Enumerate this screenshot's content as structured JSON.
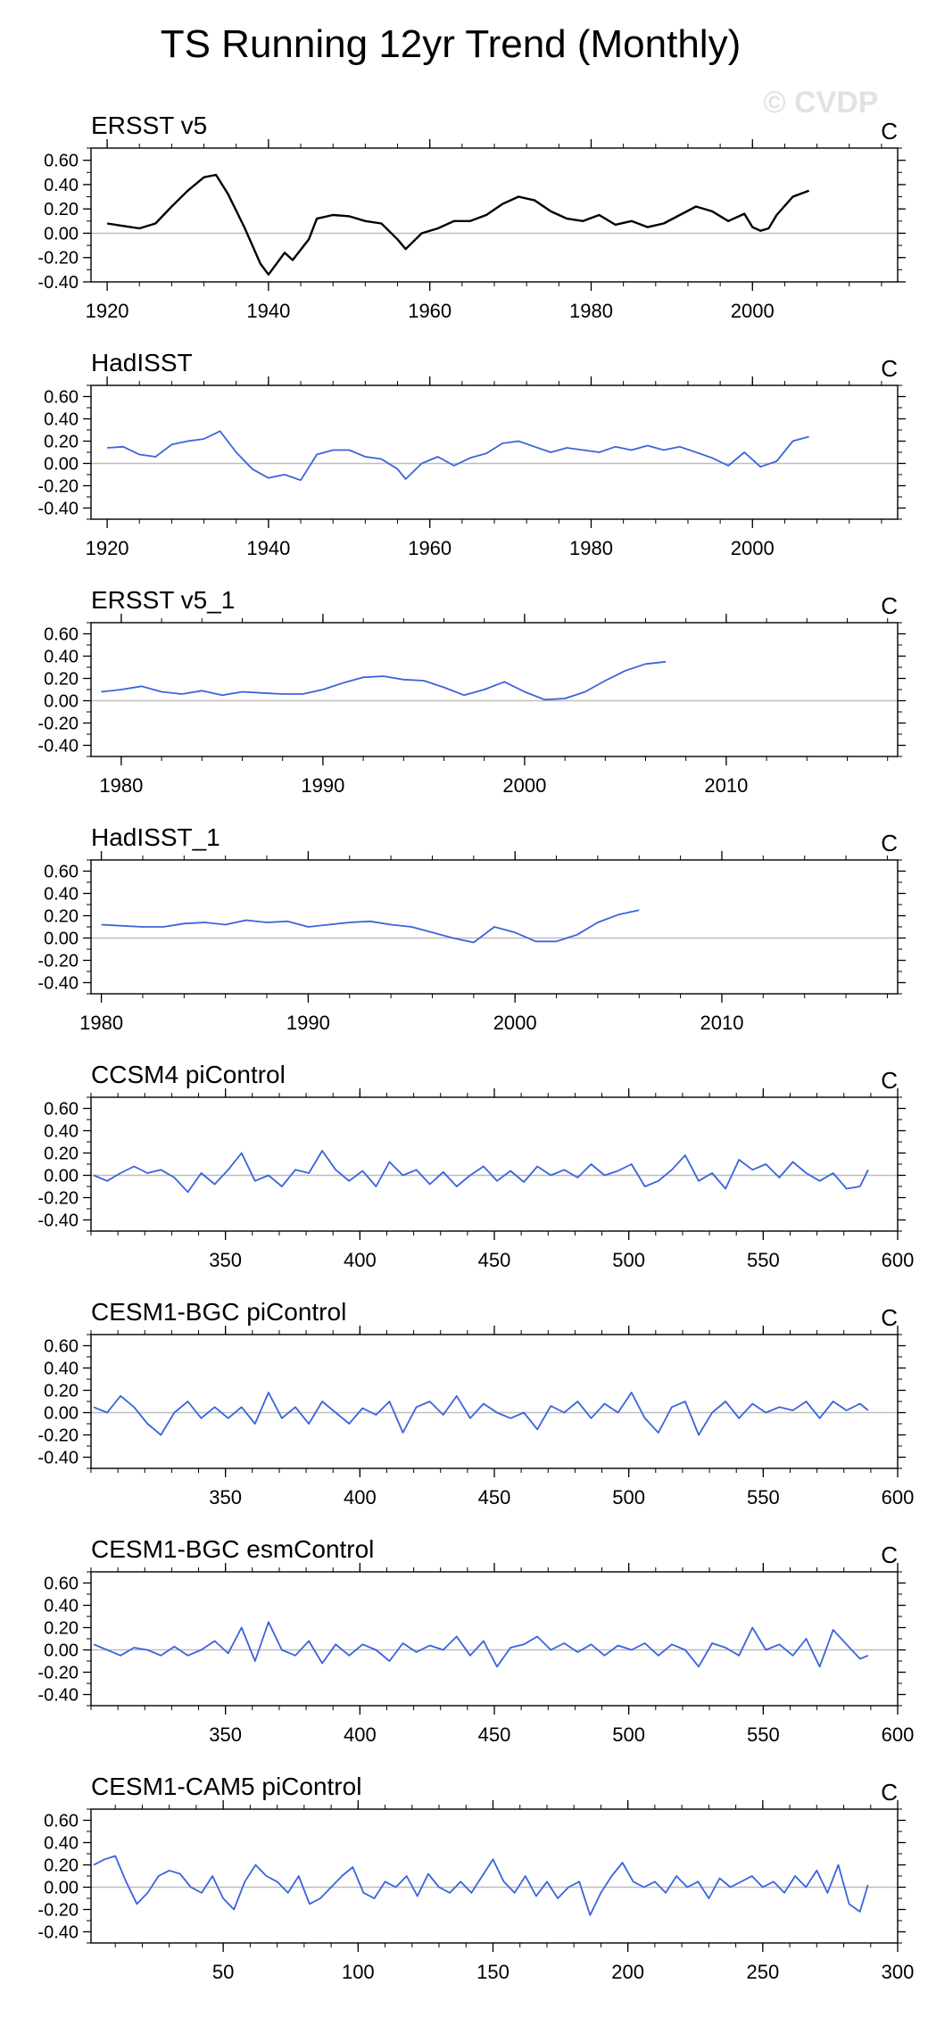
{
  "figure": {
    "title": "TS Running 12yr Trend (Monthly)",
    "watermark": "© CVDP"
  },
  "colors": {
    "observed_line": "#000000",
    "model_line": "#3b63dd",
    "zero_line": "#bdbdbd",
    "frame": "#000000",
    "watermark": "#e2e2e2"
  },
  "chart_data": [
    {
      "type": "line",
      "title": "ERSST v5",
      "units": "C",
      "color_key": "observed_line",
      "xlim": [
        1918,
        2018
      ],
      "ylim": [
        -0.4,
        0.7
      ],
      "yticks": [
        -0.4,
        -0.2,
        0.0,
        0.2,
        0.4,
        0.6
      ],
      "ytick_labels": [
        "-0.40",
        "-0.20",
        "0.00",
        "0.20",
        "0.40",
        "0.60"
      ],
      "xticks": [
        1920,
        1940,
        1960,
        1980,
        2000
      ],
      "xtick_labels": [
        "1920",
        "1940",
        "1960",
        "1980",
        "2000"
      ],
      "x": [
        1920,
        1922,
        1924,
        1926,
        1928,
        1930,
        1932,
        1933.5,
        1935,
        1937,
        1939,
        1940,
        1942,
        1943,
        1945,
        1946,
        1948,
        1950,
        1952,
        1954,
        1956,
        1957,
        1959,
        1961,
        1963,
        1965,
        1967,
        1969,
        1971,
        1973,
        1975,
        1977,
        1979,
        1981,
        1983,
        1985,
        1987,
        1989,
        1991,
        1993,
        1995,
        1997,
        1999,
        2000,
        2001,
        2002,
        2003,
        2005,
        2007
      ],
      "y": [
        0.08,
        0.06,
        0.04,
        0.08,
        0.22,
        0.35,
        0.46,
        0.48,
        0.32,
        0.05,
        -0.25,
        -0.34,
        -0.16,
        -0.22,
        -0.05,
        0.12,
        0.15,
        0.14,
        0.1,
        0.08,
        -0.05,
        -0.13,
        0.0,
        0.04,
        0.1,
        0.1,
        0.15,
        0.24,
        0.3,
        0.27,
        0.18,
        0.12,
        0.1,
        0.15,
        0.07,
        0.1,
        0.05,
        0.08,
        0.15,
        0.22,
        0.18,
        0.1,
        0.16,
        0.05,
        0.02,
        0.04,
        0.15,
        0.3,
        0.35
      ]
    },
    {
      "type": "line",
      "title": "HadISST",
      "units": "C",
      "color_key": "model_line",
      "xlim": [
        1918,
        2018
      ],
      "ylim": [
        -0.5,
        0.7
      ],
      "yticks": [
        -0.4,
        -0.2,
        0.0,
        0.2,
        0.4,
        0.6
      ],
      "ytick_labels": [
        "-0.40",
        "-0.20",
        "0.00",
        "0.20",
        "0.40",
        "0.60"
      ],
      "xticks": [
        1920,
        1940,
        1960,
        1980,
        2000
      ],
      "xtick_labels": [
        "1920",
        "1940",
        "1960",
        "1980",
        "2000"
      ],
      "x": [
        1920,
        1922,
        1924,
        1926,
        1928,
        1930,
        1932,
        1934,
        1936,
        1938,
        1940,
        1942,
        1944,
        1946,
        1948,
        1950,
        1952,
        1954,
        1956,
        1957,
        1959,
        1961,
        1963,
        1965,
        1967,
        1969,
        1971,
        1973,
        1975,
        1977,
        1979,
        1981,
        1983,
        1985,
        1987,
        1989,
        1991,
        1993,
        1995,
        1997,
        1999,
        2001,
        2003,
        2005,
        2007
      ],
      "y": [
        0.14,
        0.15,
        0.08,
        0.06,
        0.17,
        0.2,
        0.22,
        0.29,
        0.1,
        -0.05,
        -0.13,
        -0.1,
        -0.15,
        0.08,
        0.12,
        0.12,
        0.06,
        0.04,
        -0.05,
        -0.14,
        0.0,
        0.06,
        -0.02,
        0.05,
        0.09,
        0.18,
        0.2,
        0.15,
        0.1,
        0.14,
        0.12,
        0.1,
        0.15,
        0.12,
        0.16,
        0.12,
        0.15,
        0.1,
        0.05,
        -0.02,
        0.1,
        -0.03,
        0.02,
        0.2,
        0.24
      ]
    },
    {
      "type": "line",
      "title": "ERSST v5_1",
      "units": "C",
      "color_key": "model_line",
      "xlim": [
        1978.5,
        2018.5
      ],
      "ylim": [
        -0.5,
        0.7
      ],
      "yticks": [
        -0.4,
        -0.2,
        0.0,
        0.2,
        0.4,
        0.6
      ],
      "ytick_labels": [
        "-0.40",
        "-0.20",
        "0.00",
        "0.20",
        "0.40",
        "0.60"
      ],
      "xticks": [
        1980,
        1990,
        2000,
        2010
      ],
      "xtick_labels": [
        "1980",
        "1990",
        "2000",
        "2010"
      ],
      "x": [
        1979,
        1980,
        1981,
        1982,
        1983,
        1984,
        1985,
        1986,
        1987,
        1988,
        1989,
        1990,
        1991,
        1992,
        1993,
        1994,
        1995,
        1996,
        1997,
        1998,
        1999,
        2000,
        2001,
        2002,
        2003,
        2004,
        2005,
        2006,
        2007
      ],
      "y": [
        0.08,
        0.1,
        0.13,
        0.08,
        0.06,
        0.09,
        0.05,
        0.08,
        0.07,
        0.06,
        0.06,
        0.1,
        0.16,
        0.21,
        0.22,
        0.19,
        0.18,
        0.12,
        0.05,
        0.1,
        0.17,
        0.08,
        0.01,
        0.02,
        0.08,
        0.18,
        0.27,
        0.33,
        0.35
      ]
    },
    {
      "type": "line",
      "title": "HadISST_1",
      "units": "C",
      "color_key": "model_line",
      "xlim": [
        1979.5,
        2018.5
      ],
      "ylim": [
        -0.5,
        0.7
      ],
      "yticks": [
        -0.4,
        -0.2,
        0.0,
        0.2,
        0.4,
        0.6
      ],
      "ytick_labels": [
        "-0.40",
        "-0.20",
        "0.00",
        "0.20",
        "0.40",
        "0.60"
      ],
      "xticks": [
        1980,
        1990,
        2000,
        2010
      ],
      "xtick_labels": [
        "1980",
        "1990",
        "2000",
        "2010"
      ],
      "x": [
        1980,
        1981,
        1982,
        1983,
        1984,
        1985,
        1986,
        1987,
        1988,
        1989,
        1990,
        1991,
        1992,
        1993,
        1994,
        1995,
        1996,
        1997,
        1998,
        1999,
        2000,
        2001,
        2002,
        2003,
        2004,
        2005,
        2006
      ],
      "y": [
        0.12,
        0.11,
        0.1,
        0.1,
        0.13,
        0.14,
        0.12,
        0.16,
        0.14,
        0.15,
        0.1,
        0.12,
        0.14,
        0.15,
        0.12,
        0.1,
        0.05,
        0.0,
        -0.04,
        0.1,
        0.05,
        -0.03,
        -0.03,
        0.03,
        0.14,
        0.21,
        0.25
      ]
    },
    {
      "type": "line",
      "title": "CCSM4 piControl",
      "units": "C",
      "color_key": "model_line",
      "xlim": [
        300,
        600
      ],
      "ylim": [
        -0.5,
        0.7
      ],
      "yticks": [
        -0.4,
        -0.2,
        0.0,
        0.2,
        0.4,
        0.6
      ],
      "ytick_labels": [
        "-0.40",
        "-0.20",
        "0.00",
        "0.20",
        "0.40",
        "0.60"
      ],
      "xticks": [
        350,
        400,
        450,
        500,
        550,
        600
      ],
      "xtick_labels": [
        "350",
        "400",
        "450",
        "500",
        "550",
        "600"
      ],
      "x": [
        301,
        306,
        311,
        316,
        321,
        326,
        331,
        336,
        341,
        346,
        351,
        356,
        361,
        366,
        371,
        376,
        381,
        386,
        391,
        396,
        401,
        406,
        411,
        416,
        421,
        426,
        431,
        436,
        441,
        446,
        451,
        456,
        461,
        466,
        471,
        476,
        481,
        486,
        491,
        496,
        501,
        506,
        511,
        516,
        521,
        526,
        531,
        536,
        541,
        546,
        551,
        556,
        561,
        566,
        571,
        576,
        581,
        586,
        589
      ],
      "y": [
        0.0,
        -0.05,
        0.02,
        0.08,
        0.02,
        0.05,
        -0.02,
        -0.15,
        0.02,
        -0.08,
        0.05,
        0.2,
        -0.05,
        0.0,
        -0.1,
        0.05,
        0.02,
        0.22,
        0.05,
        -0.05,
        0.04,
        -0.1,
        0.12,
        0.0,
        0.05,
        -0.08,
        0.03,
        -0.1,
        0.0,
        0.08,
        -0.05,
        0.04,
        -0.06,
        0.08,
        0.0,
        0.05,
        -0.02,
        0.1,
        0.0,
        0.04,
        0.1,
        -0.1,
        -0.05,
        0.05,
        0.18,
        -0.05,
        0.02,
        -0.12,
        0.14,
        0.05,
        0.1,
        -0.02,
        0.12,
        0.02,
        -0.05,
        0.02,
        -0.12,
        -0.1,
        0.05
      ]
    },
    {
      "type": "line",
      "title": "CESM1-BGC piControl",
      "units": "C",
      "color_key": "model_line",
      "xlim": [
        300,
        600
      ],
      "ylim": [
        -0.5,
        0.7
      ],
      "yticks": [
        -0.4,
        -0.2,
        0.0,
        0.2,
        0.4,
        0.6
      ],
      "ytick_labels": [
        "-0.40",
        "-0.20",
        "0.00",
        "0.20",
        "0.40",
        "0.60"
      ],
      "xticks": [
        350,
        400,
        450,
        500,
        550,
        600
      ],
      "xtick_labels": [
        "350",
        "400",
        "450",
        "500",
        "550",
        "600"
      ],
      "x": [
        301,
        306,
        311,
        316,
        321,
        326,
        331,
        336,
        341,
        346,
        351,
        356,
        361,
        366,
        371,
        376,
        381,
        386,
        391,
        396,
        401,
        406,
        411,
        416,
        421,
        426,
        431,
        436,
        441,
        446,
        451,
        456,
        461,
        466,
        471,
        476,
        481,
        486,
        491,
        496,
        501,
        506,
        511,
        516,
        521,
        526,
        531,
        536,
        541,
        546,
        551,
        556,
        561,
        566,
        571,
        576,
        581,
        586,
        589
      ],
      "y": [
        0.05,
        0.0,
        0.15,
        0.05,
        -0.1,
        -0.2,
        0.0,
        0.1,
        -0.05,
        0.05,
        -0.05,
        0.05,
        -0.1,
        0.18,
        -0.05,
        0.05,
        -0.1,
        0.1,
        0.0,
        -0.1,
        0.04,
        -0.02,
        0.1,
        -0.18,
        0.05,
        0.1,
        -0.02,
        0.15,
        -0.05,
        0.08,
        0.0,
        -0.05,
        0.0,
        -0.15,
        0.06,
        0.0,
        0.1,
        -0.05,
        0.08,
        0.0,
        0.18,
        -0.05,
        -0.18,
        0.05,
        0.1,
        -0.2,
        0.0,
        0.1,
        -0.05,
        0.08,
        0.0,
        0.05,
        0.02,
        0.1,
        -0.05,
        0.1,
        0.02,
        0.08,
        0.02
      ]
    },
    {
      "type": "line",
      "title": "CESM1-BGC esmControl",
      "units": "C",
      "color_key": "model_line",
      "xlim": [
        300,
        600
      ],
      "ylim": [
        -0.5,
        0.7
      ],
      "yticks": [
        -0.4,
        -0.2,
        0.0,
        0.2,
        0.4,
        0.6
      ],
      "ytick_labels": [
        "-0.40",
        "-0.20",
        "0.00",
        "0.20",
        "0.40",
        "0.60"
      ],
      "xticks": [
        350,
        400,
        450,
        500,
        550,
        600
      ],
      "xtick_labels": [
        "350",
        "400",
        "450",
        "500",
        "550",
        "600"
      ],
      "x": [
        301,
        306,
        311,
        316,
        321,
        326,
        331,
        336,
        341,
        346,
        351,
        356,
        361,
        366,
        371,
        376,
        381,
        386,
        391,
        396,
        401,
        406,
        411,
        416,
        421,
        426,
        431,
        436,
        441,
        446,
        451,
        456,
        461,
        466,
        471,
        476,
        481,
        486,
        491,
        496,
        501,
        506,
        511,
        516,
        521,
        526,
        531,
        536,
        541,
        546,
        551,
        556,
        561,
        566,
        571,
        576,
        581,
        586,
        589
      ],
      "y": [
        0.05,
        0.0,
        -0.05,
        0.02,
        0.0,
        -0.05,
        0.03,
        -0.05,
        0.0,
        0.08,
        -0.03,
        0.2,
        -0.1,
        0.25,
        0.0,
        -0.05,
        0.08,
        -0.12,
        0.05,
        -0.05,
        0.05,
        0.0,
        -0.1,
        0.06,
        -0.02,
        0.04,
        0.0,
        0.12,
        -0.05,
        0.08,
        -0.15,
        0.02,
        0.05,
        0.12,
        0.0,
        0.06,
        -0.02,
        0.05,
        -0.05,
        0.04,
        0.0,
        0.06,
        -0.05,
        0.05,
        0.0,
        -0.15,
        0.06,
        0.02,
        -0.05,
        0.2,
        0.0,
        0.05,
        -0.05,
        0.1,
        -0.15,
        0.18,
        0.05,
        -0.08,
        -0.05
      ]
    },
    {
      "type": "line",
      "title": "CESM1-CAM5 piControl",
      "units": "C",
      "color_key": "model_line",
      "xlim": [
        1,
        300
      ],
      "ylim": [
        -0.5,
        0.7
      ],
      "yticks": [
        -0.4,
        -0.2,
        0.0,
        0.2,
        0.4,
        0.6
      ],
      "ytick_labels": [
        "-0.40",
        "-0.20",
        "0.00",
        "0.20",
        "0.40",
        "0.60"
      ],
      "xticks": [
        50,
        100,
        150,
        200,
        250,
        300
      ],
      "xtick_labels": [
        "50",
        "100",
        "150",
        "200",
        "250",
        "300"
      ],
      "x": [
        2,
        6,
        10,
        14,
        18,
        22,
        26,
        30,
        34,
        38,
        42,
        46,
        50,
        54,
        58,
        62,
        66,
        70,
        74,
        78,
        82,
        86,
        90,
        94,
        98,
        102,
        106,
        110,
        114,
        118,
        122,
        126,
        130,
        134,
        138,
        142,
        146,
        150,
        154,
        158,
        162,
        166,
        170,
        174,
        178,
        182,
        186,
        190,
        194,
        198,
        202,
        206,
        210,
        214,
        218,
        222,
        226,
        230,
        234,
        238,
        242,
        246,
        250,
        254,
        258,
        262,
        266,
        270,
        274,
        278,
        282,
        286,
        289
      ],
      "y": [
        0.2,
        0.25,
        0.28,
        0.05,
        -0.15,
        -0.05,
        0.1,
        0.15,
        0.12,
        0.0,
        -0.05,
        0.1,
        -0.1,
        -0.2,
        0.05,
        0.2,
        0.1,
        0.05,
        -0.05,
        0.1,
        -0.15,
        -0.1,
        0.0,
        0.1,
        0.18,
        -0.05,
        -0.1,
        0.05,
        0.0,
        0.1,
        -0.08,
        0.12,
        0.0,
        -0.05,
        0.05,
        -0.05,
        0.1,
        0.25,
        0.05,
        -0.05,
        0.1,
        -0.08,
        0.05,
        -0.1,
        0.0,
        0.05,
        -0.25,
        -0.05,
        0.1,
        0.22,
        0.05,
        0.0,
        0.05,
        -0.05,
        0.1,
        0.0,
        0.05,
        -0.1,
        0.08,
        0.0,
        0.05,
        0.1,
        0.0,
        0.05,
        -0.05,
        0.1,
        0.0,
        0.15,
        -0.05,
        0.2,
        -0.15,
        -0.22,
        0.02
      ]
    }
  ]
}
